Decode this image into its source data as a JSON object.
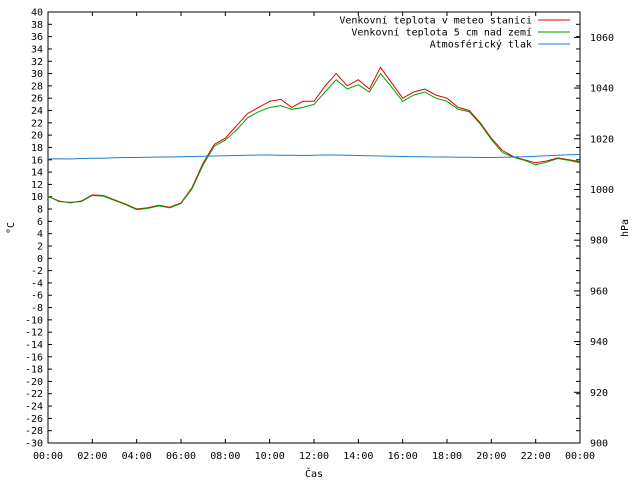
{
  "chart_data": {
    "type": "line",
    "xlabel": "Čas",
    "ylabel": "°C",
    "y2label": "hPa",
    "x_ticks": [
      "00:00",
      "02:00",
      "04:00",
      "06:00",
      "08:00",
      "10:00",
      "12:00",
      "14:00",
      "16:00",
      "18:00",
      "20:00",
      "22:00",
      "00:00"
    ],
    "x_range_hours": [
      0,
      24
    ],
    "ylim": [
      -30,
      40
    ],
    "y_ticks": [
      -30,
      -28,
      -26,
      -24,
      -22,
      -20,
      -18,
      -16,
      -14,
      -12,
      -10,
      -8,
      -6,
      -4,
      -2,
      0,
      2,
      4,
      6,
      8,
      10,
      12,
      14,
      16,
      18,
      20,
      22,
      24,
      26,
      28,
      30,
      32,
      34,
      36,
      38,
      40
    ],
    "y2lim": [
      900,
      1070
    ],
    "y2_ticks": [
      900,
      920,
      940,
      960,
      980,
      1000,
      1020,
      1040,
      1060
    ],
    "grid": false,
    "legend_position": "top-right",
    "x_hours": [
      0,
      0.5,
      1,
      1.5,
      2,
      2.5,
      3,
      3.5,
      4,
      4.5,
      5,
      5.5,
      6,
      6.5,
      7,
      7.5,
      8,
      8.5,
      9,
      9.5,
      10,
      10.5,
      11,
      11.5,
      12,
      12.5,
      13,
      13.5,
      14,
      14.5,
      15,
      15.5,
      16,
      16.5,
      17,
      17.5,
      18,
      18.5,
      19,
      19.5,
      20,
      20.5,
      21,
      21.5,
      22,
      22.5,
      23,
      23.5,
      24
    ],
    "series": [
      {
        "name": "Venkovní teplota v meteo stanici",
        "color": "#e00000",
        "axis": "left",
        "values": [
          10.0,
          9.3,
          9.0,
          9.3,
          10.3,
          10.2,
          9.5,
          8.8,
          8.0,
          8.2,
          8.6,
          8.3,
          9.0,
          11.5,
          15.5,
          18.5,
          19.5,
          21.5,
          23.5,
          24.5,
          25.5,
          25.8,
          24.5,
          25.5,
          25.5,
          28.0,
          30.0,
          28.0,
          29.0,
          27.5,
          31.0,
          28.5,
          26.0,
          27.0,
          27.5,
          26.5,
          26.0,
          24.5,
          24.0,
          22.0,
          19.5,
          17.5,
          16.5,
          16.0,
          15.5,
          15.8,
          16.3,
          16.0,
          15.7
        ]
      },
      {
        "name": "Venkovní teplota 5 cm nad zemí",
        "color": "#00a000",
        "axis": "left",
        "values": [
          10.1,
          9.2,
          9.1,
          9.2,
          10.2,
          10.1,
          9.4,
          8.7,
          7.9,
          8.1,
          8.5,
          8.2,
          8.9,
          11.3,
          15.2,
          18.2,
          19.2,
          20.8,
          22.8,
          23.8,
          24.5,
          24.8,
          24.2,
          24.5,
          25.0,
          27.0,
          29.0,
          27.5,
          28.2,
          27.0,
          30.0,
          27.8,
          25.5,
          26.5,
          27.0,
          26.0,
          25.5,
          24.2,
          23.8,
          21.8,
          19.3,
          17.2,
          16.4,
          15.9,
          15.2,
          15.6,
          16.2,
          15.9,
          15.5
        ]
      },
      {
        "name": "Atmosférický tlak",
        "color": "#1a7fd0",
        "axis": "right",
        "values": [
          1012.0,
          1012.1,
          1012.0,
          1012.2,
          1012.3,
          1012.3,
          1012.5,
          1012.6,
          1012.6,
          1012.7,
          1012.8,
          1012.8,
          1012.9,
          1013.0,
          1013.1,
          1013.2,
          1013.3,
          1013.4,
          1013.5,
          1013.6,
          1013.6,
          1013.5,
          1013.5,
          1013.4,
          1013.5,
          1013.6,
          1013.6,
          1013.5,
          1013.4,
          1013.3,
          1013.2,
          1013.1,
          1013.0,
          1012.9,
          1012.9,
          1012.8,
          1012.8,
          1012.7,
          1012.7,
          1012.6,
          1012.6,
          1012.7,
          1012.8,
          1012.9,
          1013.1,
          1013.3,
          1013.5,
          1013.7,
          1013.8
        ]
      }
    ]
  }
}
